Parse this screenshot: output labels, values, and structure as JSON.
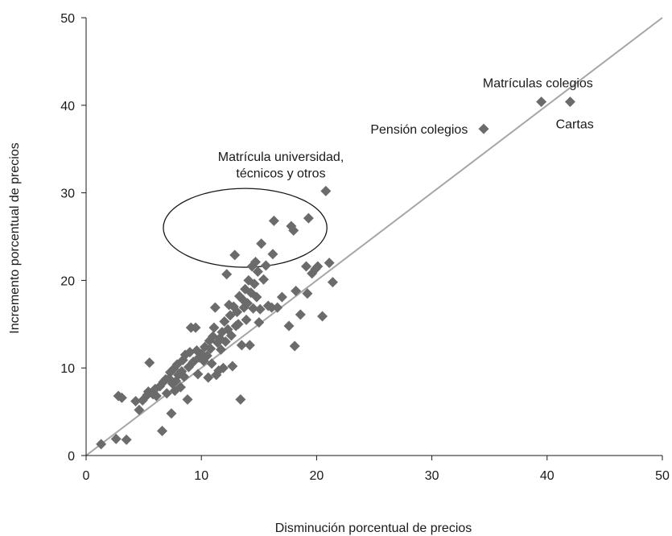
{
  "chart_data": {
    "type": "scatter",
    "title": "",
    "xlabel": "Disminución porcentual de precios",
    "ylabel": "Incremento porcentual de precios",
    "xlim": [
      0,
      50
    ],
    "ylim": [
      0,
      50
    ],
    "x_ticks": [
      0,
      10,
      20,
      30,
      40,
      50
    ],
    "y_ticks": [
      0,
      10,
      20,
      30,
      40,
      50
    ],
    "grid": false,
    "legend": "none",
    "reference_line": {
      "from": [
        0,
        0
      ],
      "to": [
        50,
        50
      ],
      "color": "#a6a6a6"
    },
    "marker": {
      "shape": "diamond",
      "color": "#6b6b6b"
    },
    "points": [
      [
        1.3,
        1.3
      ],
      [
        2.6,
        1.9
      ],
      [
        3.5,
        1.8
      ],
      [
        2.8,
        6.8
      ],
      [
        3.1,
        6.6
      ],
      [
        4.3,
        6.2
      ],
      [
        4.6,
        5.2
      ],
      [
        4.9,
        6.3
      ],
      [
        5.3,
        6.9
      ],
      [
        5.4,
        7.3
      ],
      [
        5.5,
        10.6
      ],
      [
        5.8,
        7.0
      ],
      [
        6.0,
        7.6
      ],
      [
        6.1,
        6.8
      ],
      [
        6.4,
        7.9
      ],
      [
        6.6,
        2.8
      ],
      [
        6.7,
        8.4
      ],
      [
        6.9,
        8.7
      ],
      [
        7.0,
        7.1
      ],
      [
        7.2,
        8.8
      ],
      [
        7.3,
        9.5
      ],
      [
        7.4,
        4.8
      ],
      [
        7.5,
        8.2
      ],
      [
        7.6,
        9.9
      ],
      [
        7.7,
        7.4
      ],
      [
        7.8,
        8.5
      ],
      [
        7.9,
        10.4
      ],
      [
        8.0,
        9.2
      ],
      [
        8.2,
        7.8
      ],
      [
        8.3,
        9.6
      ],
      [
        8.4,
        10.9
      ],
      [
        8.5,
        9.0
      ],
      [
        8.6,
        11.5
      ],
      [
        8.8,
        6.4
      ],
      [
        8.9,
        10.1
      ],
      [
        9.0,
        11.8
      ],
      [
        9.1,
        14.6
      ],
      [
        9.3,
        10.7
      ],
      [
        9.5,
        14.6
      ],
      [
        9.6,
        12.0
      ],
      [
        9.7,
        9.3
      ],
      [
        9.8,
        11.2
      ],
      [
        10.0,
        11.6
      ],
      [
        10.2,
        10.8
      ],
      [
        10.3,
        12.4
      ],
      [
        10.5,
        11.4
      ],
      [
        10.6,
        8.9
      ],
      [
        10.7,
        13.1
      ],
      [
        10.8,
        12.2
      ],
      [
        10.9,
        10.5
      ],
      [
        11.0,
        13.6
      ],
      [
        11.1,
        14.6
      ],
      [
        11.2,
        16.9
      ],
      [
        11.3,
        9.2
      ],
      [
        11.4,
        12.9
      ],
      [
        11.5,
        9.7
      ],
      [
        11.6,
        13.4
      ],
      [
        11.7,
        12.1
      ],
      [
        11.8,
        14.1
      ],
      [
        11.9,
        10.0
      ],
      [
        12.0,
        15.3
      ],
      [
        12.1,
        13.0
      ],
      [
        12.2,
        20.7
      ],
      [
        12.3,
        14.4
      ],
      [
        12.4,
        17.2
      ],
      [
        12.5,
        16.0
      ],
      [
        12.6,
        13.7
      ],
      [
        12.7,
        10.2
      ],
      [
        12.8,
        17.0
      ],
      [
        12.9,
        22.9
      ],
      [
        13.0,
        14.8
      ],
      [
        13.1,
        16.4
      ],
      [
        13.2,
        15.0
      ],
      [
        13.3,
        18.2
      ],
      [
        13.4,
        6.4
      ],
      [
        13.5,
        12.6
      ],
      [
        13.6,
        17.8
      ],
      [
        13.7,
        16.9
      ],
      [
        13.8,
        19.0
      ],
      [
        13.9,
        15.5
      ],
      [
        14.0,
        17.4
      ],
      [
        14.1,
        20.0
      ],
      [
        14.2,
        12.6
      ],
      [
        14.3,
        18.6
      ],
      [
        14.4,
        21.6
      ],
      [
        14.5,
        16.8
      ],
      [
        14.6,
        19.6
      ],
      [
        14.7,
        22.1
      ],
      [
        14.8,
        18.1
      ],
      [
        14.9,
        21.0
      ],
      [
        15.0,
        15.2
      ],
      [
        15.1,
        16.7
      ],
      [
        15.2,
        24.2
      ],
      [
        15.4,
        20.1
      ],
      [
        15.6,
        21.7
      ],
      [
        15.8,
        17.1
      ],
      [
        16.1,
        16.9
      ],
      [
        16.2,
        23.0
      ],
      [
        16.3,
        26.8
      ],
      [
        16.6,
        16.9
      ],
      [
        17.0,
        18.1
      ],
      [
        17.6,
        14.8
      ],
      [
        17.8,
        26.2
      ],
      [
        18.0,
        25.7
      ],
      [
        18.1,
        12.5
      ],
      [
        18.2,
        18.8
      ],
      [
        18.6,
        16.1
      ],
      [
        19.1,
        21.6
      ],
      [
        19.2,
        18.5
      ],
      [
        19.3,
        27.1
      ],
      [
        19.6,
        20.8
      ],
      [
        19.9,
        21.3
      ],
      [
        20.1,
        21.6
      ],
      [
        20.5,
        15.9
      ],
      [
        20.8,
        30.2
      ],
      [
        21.1,
        22.0
      ],
      [
        21.4,
        19.8
      ],
      [
        34.5,
        37.3
      ],
      [
        39.5,
        40.4
      ],
      [
        42.0,
        40.4
      ]
    ],
    "annotations": [
      {
        "text": "Matrícula universidad,",
        "x": 16.9,
        "y": 34.2
      },
      {
        "text": "técnicos y otros",
        "x": 16.9,
        "y": 32.3
      },
      {
        "text": "Pensión colegios",
        "x": 28.9,
        "y": 37.3
      },
      {
        "text": "Matrículas colegios",
        "x": 39.2,
        "y": 42.6
      },
      {
        "text": "Cartas",
        "x": 42.4,
        "y": 37.9
      }
    ],
    "highlight_ellipse": {
      "cx": 13.8,
      "cy": 26.0,
      "rx": 7.1,
      "ry": 4.5
    }
  }
}
